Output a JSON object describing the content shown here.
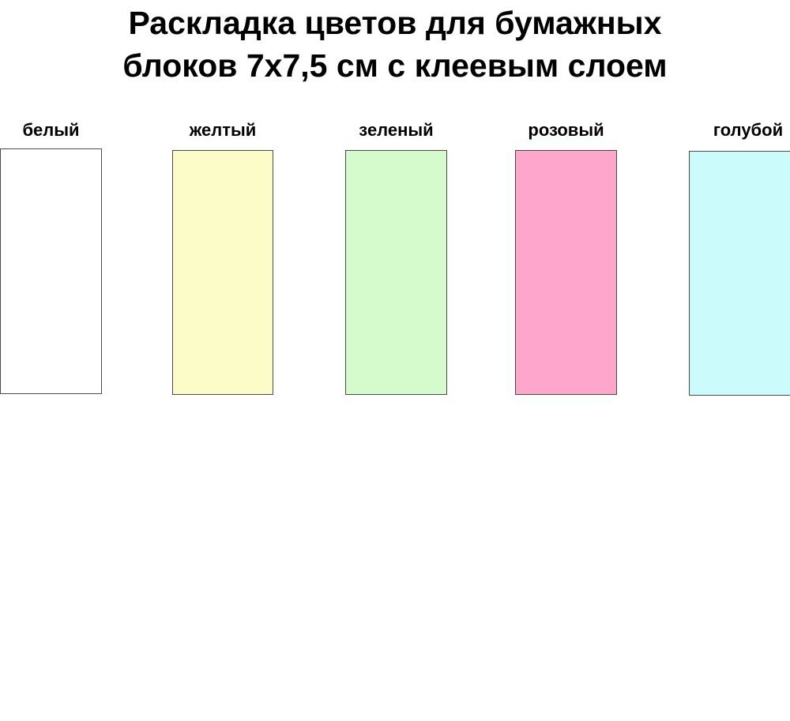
{
  "title": {
    "line1": "Раскладка цветов для бумажных",
    "line2": "блоков 7х7,5 см с клеевым слоем"
  },
  "swatches": [
    {
      "label": "белый",
      "fill": "#FFFFFF"
    },
    {
      "label": "желтый",
      "fill": "#FCFCC8"
    },
    {
      "label": "зеленый",
      "fill": "#D5FACB"
    },
    {
      "label": "розовый",
      "fill": "#FFA6CD"
    },
    {
      "label": "голубой",
      "fill": "#CCFBFC"
    }
  ],
  "border_color": "#4A4A4A"
}
